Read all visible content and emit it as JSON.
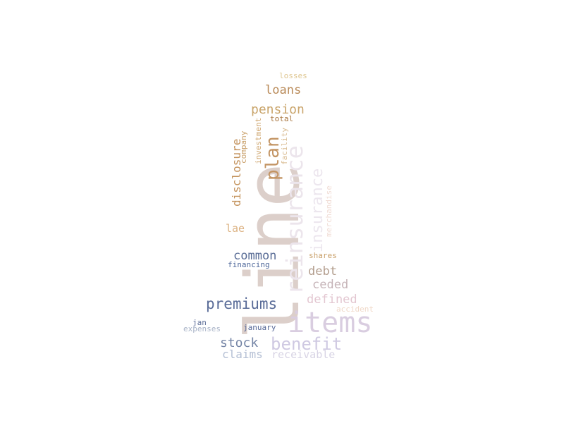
{
  "words": [
    {
      "key": "line",
      "text": "line",
      "color": "#dccfca"
    },
    {
      "key": "items",
      "text": "items",
      "color": "#d9cde0"
    },
    {
      "key": "reinsurance",
      "text": "reinsurance",
      "color": "#ece5ec"
    },
    {
      "key": "insurance",
      "text": "insurance",
      "color": "#ece6ee"
    },
    {
      "key": "plan",
      "text": "plan",
      "color": "#c39463"
    },
    {
      "key": "disclosure",
      "text": "disclosure",
      "color": "#c4935d"
    },
    {
      "key": "company",
      "text": "company",
      "color": "#c9a06a"
    },
    {
      "key": "investment",
      "text": "investment",
      "color": "#d0a873"
    },
    {
      "key": "facility",
      "text": "facility",
      "color": "#d9bb90"
    },
    {
      "key": "merchandise",
      "text": "merchandise",
      "color": "#f1ddd6"
    },
    {
      "key": "losses",
      "text": "losses",
      "color": "#dfc792"
    },
    {
      "key": "loans",
      "text": "loans",
      "color": "#b98a58"
    },
    {
      "key": "pension",
      "text": "pension",
      "color": "#c9a46a"
    },
    {
      "key": "total",
      "text": "total",
      "color": "#a8753e"
    },
    {
      "key": "lae",
      "text": "lae",
      "color": "#dcb283"
    },
    {
      "key": "common",
      "text": "common",
      "color": "#5b6e97"
    },
    {
      "key": "shares",
      "text": "shares",
      "color": "#c9a06a"
    },
    {
      "key": "financing",
      "text": "financing",
      "color": "#4e679a"
    },
    {
      "key": "debt",
      "text": "debt",
      "color": "#b39e8e"
    },
    {
      "key": "ceded",
      "text": "ceded",
      "color": "#c7b5b9"
    },
    {
      "key": "premiums",
      "text": "premiums",
      "color": "#5a6c98"
    },
    {
      "key": "defined",
      "text": "defined",
      "color": "#e3c7d1"
    },
    {
      "key": "accident",
      "text": "accident",
      "color": "#f0d9c9"
    },
    {
      "key": "jan",
      "text": "jan",
      "color": "#5d6e98"
    },
    {
      "key": "expenses",
      "text": "expenses",
      "color": "#a8b3c7"
    },
    {
      "key": "january",
      "text": "january",
      "color": "#5a6c9a"
    },
    {
      "key": "stock",
      "text": "stock",
      "color": "#7585a6"
    },
    {
      "key": "benefit",
      "text": "benefit",
      "color": "#cfc9e2"
    },
    {
      "key": "claims",
      "text": "claims",
      "color": "#b4bfd4"
    },
    {
      "key": "receivable",
      "text": "receivable",
      "color": "#d7d3e4"
    }
  ]
}
